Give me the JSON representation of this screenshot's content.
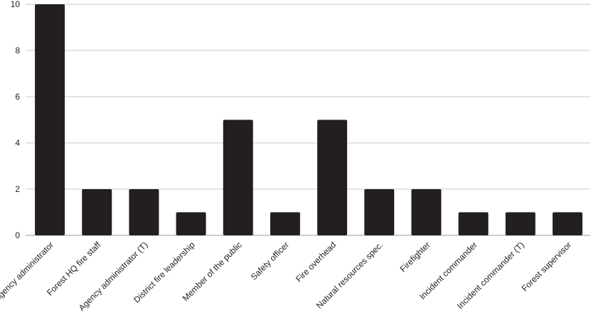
{
  "chart_data": {
    "type": "bar",
    "categories": [
      "Agency administrator",
      "Forest HQ fire staff",
      "Agency administrator (T)",
      "District fire leadership",
      "Member of the public",
      "Safety officer",
      "Fire overhead",
      "Natural resources spec.",
      "Firefighter",
      "Incident commander",
      "Incident commander (T)",
      "Forest supervisor"
    ],
    "values": [
      10,
      2,
      2,
      1,
      5,
      1,
      5,
      2,
      2,
      1,
      1,
      1
    ],
    "ylim": [
      0,
      10
    ],
    "yticks": [
      0,
      2,
      4,
      6,
      8,
      10
    ],
    "grid": true,
    "bar_color": "#231f20",
    "grid_color": "#c8c8c8",
    "legend": "none"
  }
}
